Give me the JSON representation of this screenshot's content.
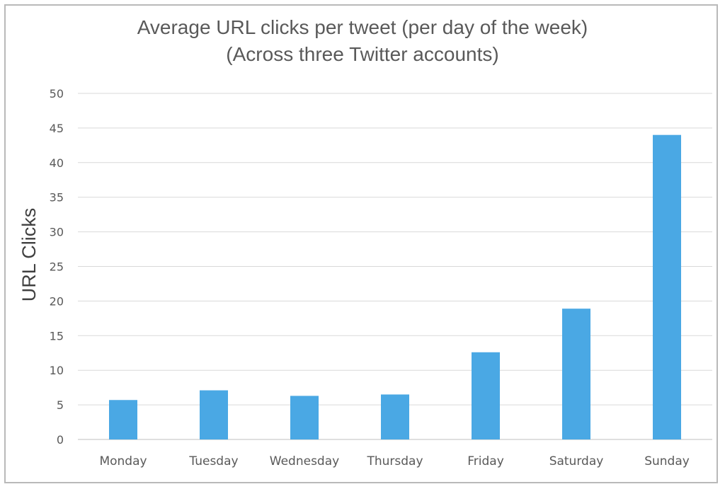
{
  "chart_data": {
    "type": "bar",
    "title": "Average URL clicks per tweet (per day of the week)",
    "subtitle": "(Across three Twitter accounts)",
    "xlabel": "",
    "ylabel": "URL Clicks",
    "categories": [
      "Monday",
      "Tuesday",
      "Wednesday",
      "Thursday",
      "Friday",
      "Saturday",
      "Sunday"
    ],
    "values": [
      5.7,
      7.1,
      6.3,
      6.5,
      12.6,
      18.9,
      44.0
    ],
    "ylim": [
      0,
      50
    ],
    "yticks": [
      "0",
      "5",
      "10",
      "15",
      "20",
      "25",
      "30",
      "35",
      "40",
      "45",
      "50"
    ],
    "grid": true,
    "legend": "none",
    "bar_color": "#4aa8e4"
  }
}
